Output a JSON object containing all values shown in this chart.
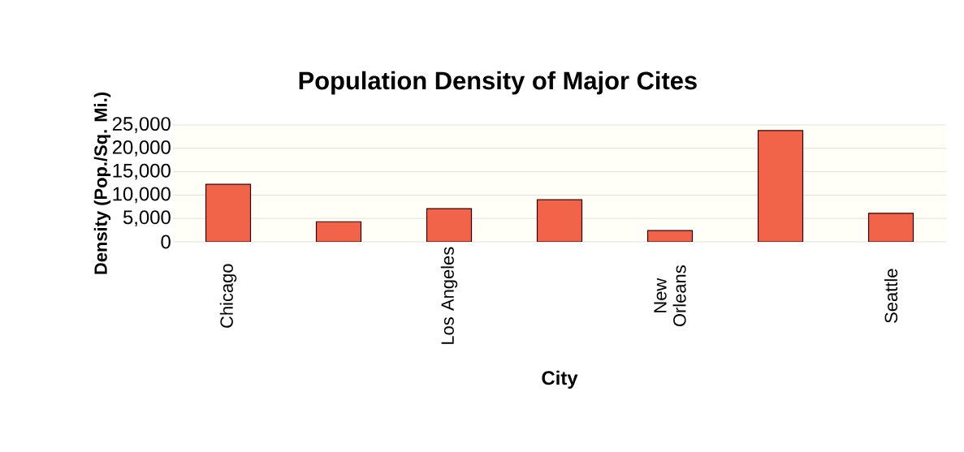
{
  "chart_data": {
    "type": "bar",
    "title": "Population Density of Major Cites",
    "xlabel": "City",
    "ylabel": "Density (Pop./Sq. Mi.)",
    "categories": [
      "Chicago",
      null,
      "Los Angeles",
      null,
      "New Orleans",
      null,
      "Seattle"
    ],
    "values": [
      12300,
      4300,
      7100,
      9000,
      2400,
      23800,
      6100
    ],
    "color": "#f2644a",
    "ylim": [
      0,
      25000
    ],
    "yticks": [
      {
        "value": 0,
        "label": "0"
      },
      {
        "value": 5000,
        "label": "5,000"
      },
      {
        "value": 10000,
        "label": "10,000"
      },
      {
        "value": 15000,
        "label": "15,000"
      },
      {
        "value": 20000,
        "label": "20,000"
      },
      {
        "value": 25000,
        "label": "25,000"
      }
    ],
    "grid": "y"
  }
}
